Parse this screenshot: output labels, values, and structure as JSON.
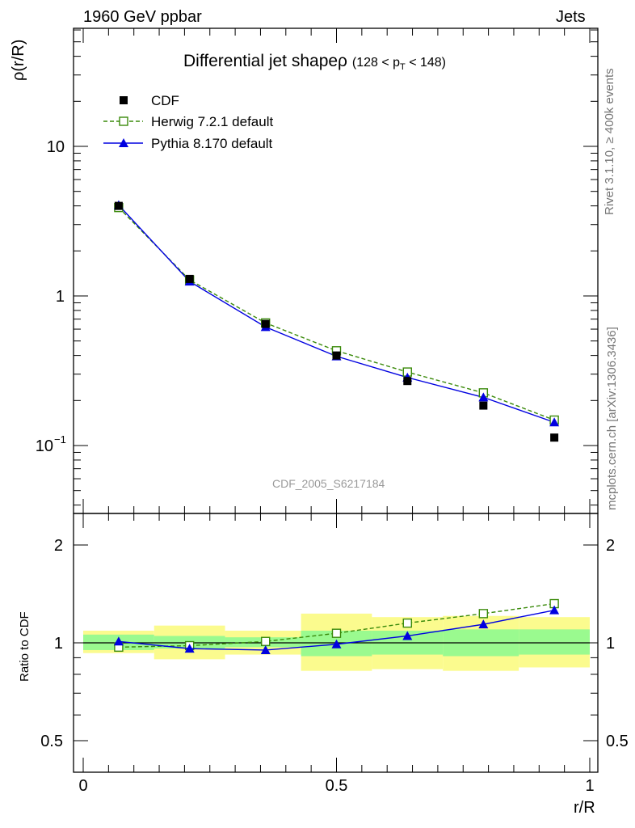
{
  "header": {
    "left": "1960 GeV ppbar",
    "right": "Jets"
  },
  "side_labels": {
    "rivet": "Rivet 3.1.10, ≥ 400k events",
    "mcplots": "mcplots.cern.ch [arXiv:1306.3436]"
  },
  "chart_data": [
    {
      "type": "line",
      "panel": "main",
      "title": "Differential jet shapeρ",
      "title_cut": "(128 < p_T < 148)",
      "ylabel": "ρ(r/R)",
      "yscale": "log",
      "ylim": [
        0.035,
        55
      ],
      "ytick_labels": [
        "10",
        "1",
        "10^-1"
      ],
      "watermark": "CDF_2005_S6217184",
      "legend_position": "top-left",
      "x": [
        0.07,
        0.21,
        0.36,
        0.5,
        0.64,
        0.79,
        0.93
      ],
      "series": [
        {
          "name": "CDF",
          "marker": "filled-square",
          "color": "#000000",
          "values": [
            4.0,
            1.3,
            0.65,
            0.4,
            0.27,
            0.185,
            0.113
          ]
        },
        {
          "name": "Herwig 7.2.1 default",
          "marker": "open-square",
          "line": "dashed",
          "color": "#3a8a0a",
          "values": [
            3.9,
            1.28,
            0.66,
            0.43,
            0.31,
            0.225,
            0.148
          ]
        },
        {
          "name": "Pythia 8.170 default",
          "marker": "filled-triangle",
          "line": "solid",
          "color": "#0000e0",
          "values": [
            4.05,
            1.25,
            0.62,
            0.395,
            0.285,
            0.21,
            0.143
          ]
        }
      ]
    },
    {
      "type": "line",
      "panel": "ratio",
      "ylabel": "Ratio to CDF",
      "xlabel": "r/R",
      "ylim": [
        0.4,
        2.4
      ],
      "yscale": "log",
      "ytick_labels": [
        "2",
        "1",
        "0.5"
      ],
      "xlim": [
        0,
        1
      ],
      "xtick_labels": [
        "0",
        "0.5",
        "1"
      ],
      "x": [
        0.07,
        0.21,
        0.36,
        0.5,
        0.64,
        0.79,
        0.93
      ],
      "band_edges": [
        0,
        0.14,
        0.28,
        0.43,
        0.57,
        0.71,
        0.86,
        1.0
      ],
      "band_inner": [
        [
          0.95,
          1.06
        ],
        [
          0.96,
          1.05
        ],
        [
          0.97,
          1.04
        ],
        [
          0.91,
          1.09
        ],
        [
          0.92,
          1.09
        ],
        [
          0.91,
          1.1
        ],
        [
          0.92,
          1.1
        ]
      ],
      "band_outer": [
        [
          0.93,
          1.09
        ],
        [
          0.89,
          1.13
        ],
        [
          0.92,
          1.09
        ],
        [
          0.82,
          1.23
        ],
        [
          0.83,
          1.2
        ],
        [
          0.82,
          1.21
        ],
        [
          0.84,
          1.2
        ]
      ],
      "series": [
        {
          "name": "Herwig 7.2.1 default",
          "color": "#3a8a0a",
          "values": [
            0.97,
            0.98,
            1.01,
            1.07,
            1.15,
            1.23,
            1.32
          ]
        },
        {
          "name": "Pythia 8.170 default",
          "color": "#0000e0",
          "values": [
            1.01,
            0.96,
            0.95,
            0.99,
            1.05,
            1.14,
            1.26
          ]
        }
      ],
      "colors": {
        "inner_band": "#9afa8f",
        "outer_band": "#fbfb8e"
      }
    }
  ]
}
